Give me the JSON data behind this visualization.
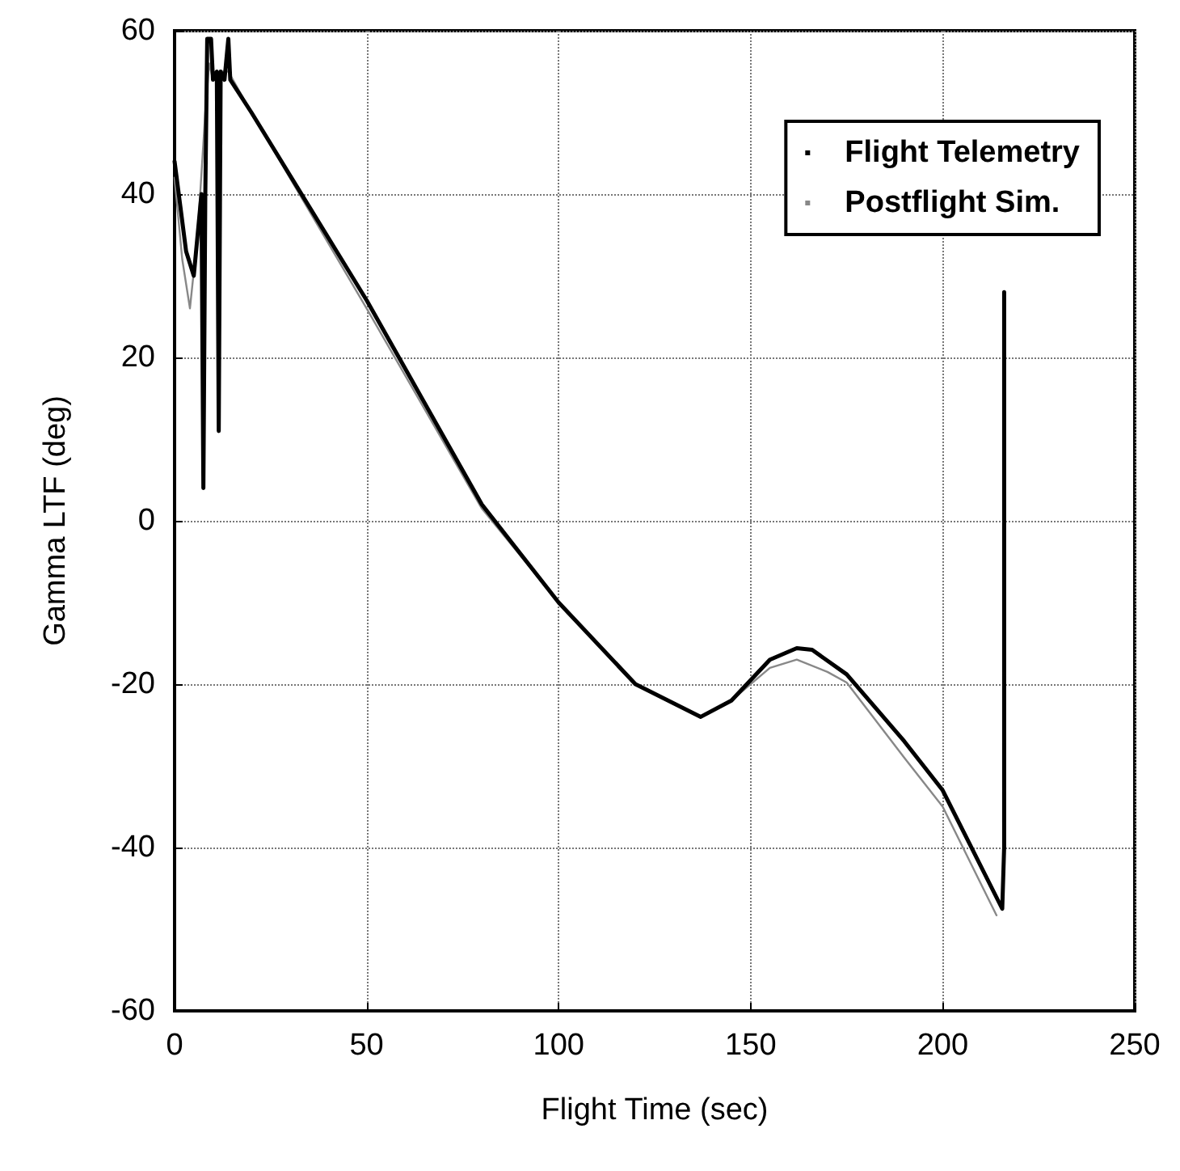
{
  "chart_data": {
    "type": "line",
    "xlabel": "Flight Time (sec)",
    "ylabel": "Gamma LTF (deg)",
    "xlim": [
      0,
      250
    ],
    "xticks": [
      0,
      50,
      100,
      150,
      200,
      250
    ],
    "ylim": [
      -60,
      60
    ],
    "yticks": [
      -60,
      -40,
      -20,
      0,
      20,
      40,
      60
    ],
    "grid": true,
    "legend": "top right",
    "marker": "none",
    "line_style": "solid",
    "series": [
      {
        "name": "Flight Telemetry",
        "color": "#000000",
        "x": [
          0,
          3,
          5,
          7,
          7.5,
          8,
          8.5,
          9.5,
          10,
          11,
          11.5,
          12,
          13,
          14,
          14.5,
          20,
          50,
          80,
          100,
          120,
          137,
          145,
          155,
          162,
          166,
          175,
          190,
          200,
          215.5,
          216,
          216
        ],
        "values": [
          44,
          33,
          30,
          40,
          4,
          40,
          59,
          59,
          54,
          55,
          11,
          55,
          54,
          59,
          54,
          50,
          27,
          2,
          -10,
          -20,
          -24,
          -22,
          -17,
          -15.6,
          -15.8,
          -18.8,
          -27,
          -33,
          -47.5,
          -40,
          28
        ]
      },
      {
        "name": "Postflight Sim.",
        "color": "#888888",
        "x": [
          0,
          2,
          4,
          6,
          8,
          9,
          10,
          12,
          14,
          20,
          50,
          80,
          100,
          120,
          137,
          145,
          155,
          162,
          170,
          175,
          190,
          200,
          214
        ],
        "values": [
          42,
          32,
          26,
          35,
          50,
          56,
          54,
          55,
          55,
          50,
          26,
          1.5,
          -10,
          -20,
          -24,
          -22,
          -18,
          -17,
          -18.5,
          -19.8,
          -29,
          -35,
          -48.3
        ]
      }
    ]
  }
}
